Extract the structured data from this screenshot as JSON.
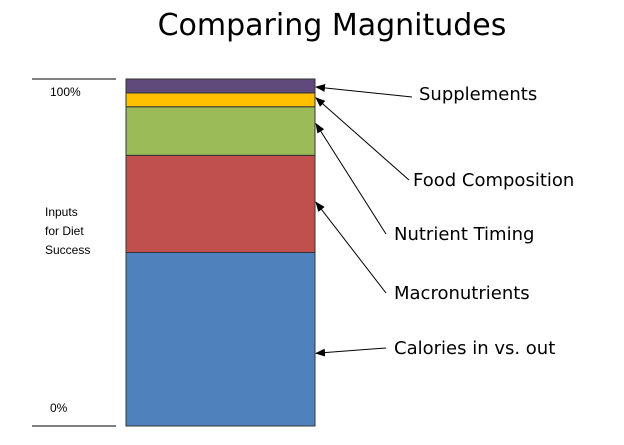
{
  "chart_data": {
    "type": "bar",
    "stacked": true,
    "title": "Comparing Magnitudes",
    "ylabel": [
      "Inputs",
      "for Diet",
      "Success"
    ],
    "ylim": [
      0,
      100
    ],
    "yticks": [
      {
        "value": 100,
        "label": "100%"
      },
      {
        "value": 0,
        "label": "0%"
      }
    ],
    "series": [
      {
        "name": "Calories in vs. out",
        "value": 50,
        "color": "#4F81BD"
      },
      {
        "name": "Macronutrients",
        "value": 28,
        "color": "#C0504D"
      },
      {
        "name": "Nutrient Timing",
        "value": 14,
        "color": "#9BBB59"
      },
      {
        "name": "Food Composition",
        "value": 4,
        "color": "#FFC000"
      },
      {
        "name": "Supplements",
        "value": 4,
        "color": "#604A7B"
      }
    ],
    "label_order_top_to_bottom": [
      "Supplements",
      "Food Composition",
      "Nutrient Timing",
      "Macronutrients",
      "Calories in vs. out"
    ]
  }
}
